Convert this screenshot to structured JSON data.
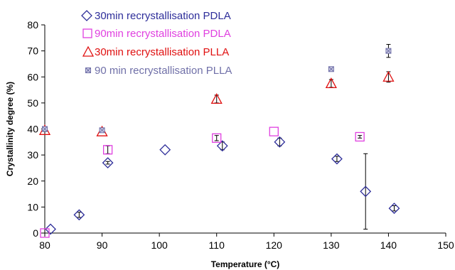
{
  "chart_data": {
    "type": "scatter",
    "title": "",
    "xlabel": "Temperature (°C)",
    "ylabel": "Crystallinity degree (%)",
    "xlim": [
      80,
      150
    ],
    "ylim": [
      0,
      80
    ],
    "xticks": [
      80,
      90,
      100,
      110,
      120,
      130,
      140,
      150
    ],
    "yticks": [
      0,
      10,
      20,
      30,
      40,
      50,
      60,
      70,
      80
    ],
    "grid": false,
    "legend_position": "top-left",
    "series": [
      {
        "name": "30min recrystallisation PDLA",
        "marker": "diamond",
        "color": "#2e2e9a",
        "points": [
          {
            "x": 81,
            "y": 1.5,
            "err": 0
          },
          {
            "x": 86,
            "y": 7,
            "err": 1
          },
          {
            "x": 91,
            "y": 27,
            "err": 0.5
          },
          {
            "x": 101,
            "y": 32,
            "err": 0
          },
          {
            "x": 111,
            "y": 33.5,
            "err": 1.5
          },
          {
            "x": 121,
            "y": 35,
            "err": 1.5
          },
          {
            "x": 131,
            "y": 28.5,
            "err": 1
          },
          {
            "x": 136,
            "y": 16,
            "err": 14.5
          },
          {
            "x": 141,
            "y": 9.5,
            "err": 1
          }
        ]
      },
      {
        "name": "90min recrystallisation PDLA",
        "marker": "square",
        "color": "#e040e0",
        "points": [
          {
            "x": 80,
            "y": 0,
            "err": 0
          },
          {
            "x": 91,
            "y": 32,
            "err": 1.5
          },
          {
            "x": 110,
            "y": 36.5,
            "err": 1
          },
          {
            "x": 120,
            "y": 39,
            "err": 0
          },
          {
            "x": 135,
            "y": 37,
            "err": 0.5
          }
        ]
      },
      {
        "name": "30min  recrystallisation PLLA",
        "marker": "triangle",
        "color": "#e01010",
        "points": [
          {
            "x": 80,
            "y": 39.5,
            "err": 0.5
          },
          {
            "x": 90,
            "y": 39,
            "err": 0
          },
          {
            "x": 110,
            "y": 51.5,
            "err": 1.5
          },
          {
            "x": 130,
            "y": 57.5,
            "err": 1.5
          },
          {
            "x": 140,
            "y": 60,
            "err": 2
          }
        ]
      },
      {
        "name": "90 min recrystallisation PLLA",
        "marker": "x-square",
        "color": "#7070a8",
        "points": [
          {
            "x": 80,
            "y": 40,
            "err": 0
          },
          {
            "x": 90,
            "y": 39.5,
            "err": 0
          },
          {
            "x": 130,
            "y": 63,
            "err": 0
          },
          {
            "x": 140,
            "y": 70,
            "err": 2.5
          }
        ]
      }
    ]
  }
}
